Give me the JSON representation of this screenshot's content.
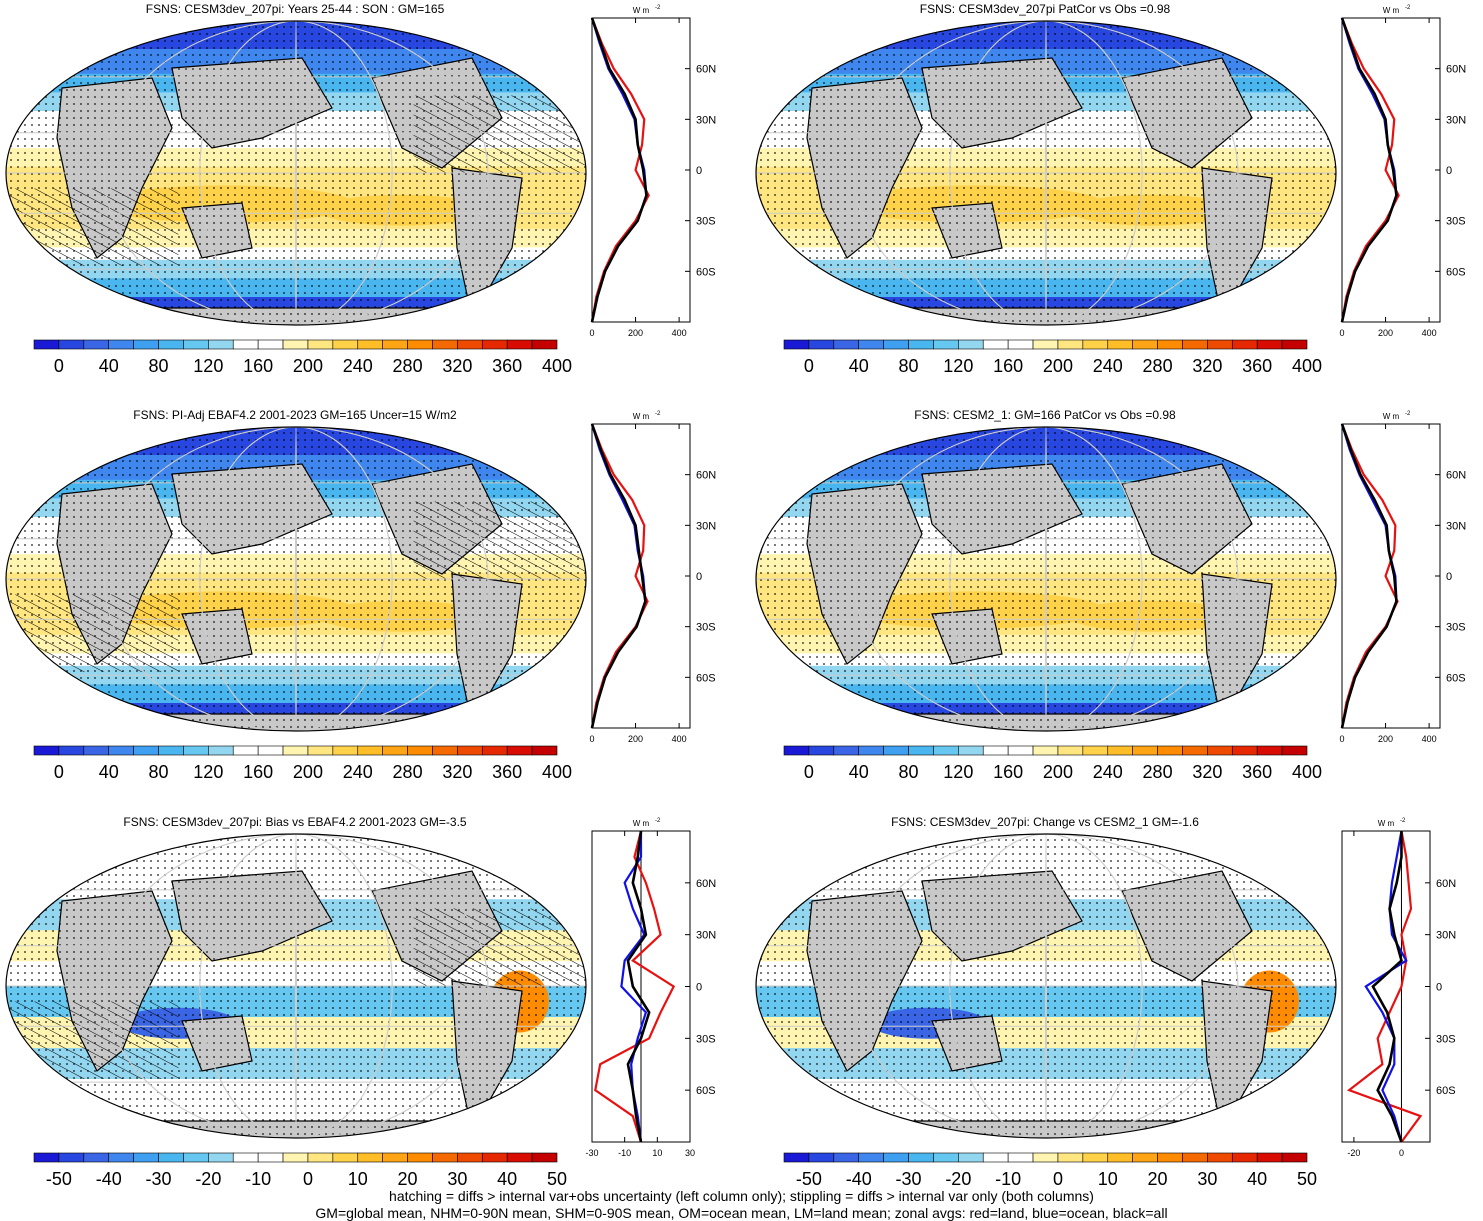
{
  "panels": [
    {
      "id": "p1",
      "title": "FSNS: CESM3dev_207pi: Years 25-44 : SON : GM=165",
      "scale": "abs",
      "hatch": true
    },
    {
      "id": "p2",
      "title": "FSNS: CESM3dev_207pi PatCor vs Obs =0.98",
      "scale": "abs",
      "hatch": false
    },
    {
      "id": "p3",
      "title": "FSNS: PI-Adj EBAF4.2 2001-2023 GM=165 Uncer=15 W/m2",
      "scale": "abs",
      "hatch": true
    },
    {
      "id": "p4",
      "title": "FSNS: CESM2_1: GM=166 PatCor vs Obs =0.98",
      "scale": "abs",
      "hatch": false
    },
    {
      "id": "p5",
      "title": "FSNS: CESM3dev_207pi: Bias vs EBAF4.2 2001-2023  GM=-3.5",
      "scale": "diff",
      "hatch": true
    },
    {
      "id": "p6",
      "title": "FSNS: CESM3dev_207pi: Change vs CESM2_1 GM=-1.6",
      "scale": "diff",
      "hatch": false
    }
  ],
  "colorbars": {
    "abs": {
      "labels": [
        "0",
        "40",
        "80",
        "120",
        "160",
        "200",
        "240",
        "280",
        "320",
        "360",
        "400"
      ],
      "colors": [
        "#1a1ad6",
        "#2846e0",
        "#3a66e6",
        "#3f86ee",
        "#3fa0f2",
        "#4ab6f0",
        "#66c8f0",
        "#93d6f0",
        "#ffffff",
        "#ffffff",
        "#fff5b0",
        "#ffe680",
        "#ffd24a",
        "#ffbe28",
        "#ffa414",
        "#ff8c00",
        "#f56a00",
        "#ee4a00",
        "#e62800",
        "#d80c00",
        "#c40000"
      ]
    },
    "diff": {
      "labels": [
        "-50",
        "-40",
        "-30",
        "-20",
        "-10",
        "0",
        "10",
        "20",
        "30",
        "40",
        "50"
      ],
      "colors": [
        "#1a1ad6",
        "#2846e0",
        "#3a66e6",
        "#3f86ee",
        "#3fa0f2",
        "#4ab6f0",
        "#66c8f0",
        "#93d6f0",
        "#ffffff",
        "#ffffff",
        "#fff5b0",
        "#ffe680",
        "#ffd24a",
        "#ffbe28",
        "#ffa414",
        "#ff8c00",
        "#f56a00",
        "#ee4a00",
        "#e62800",
        "#d80c00",
        "#c40000"
      ]
    }
  },
  "zonal_unit": "W m",
  "zonal_unit_exp": "-2",
  "lat_labels": [
    "60N",
    "30N",
    "0",
    "30S",
    "60S"
  ],
  "zonal_ticks_abs": [
    "0",
    "200",
    "400"
  ],
  "zonal_ticks_bias": [
    "-30",
    "-10",
    "10",
    "30"
  ],
  "zonal_ticks_change": [
    "-20",
    "0"
  ],
  "footer": {
    "line1": "hatching = diffs > internal var+obs uncertainty (left column only); stippling = diffs > internal var only (both columns)",
    "line2": "GM=global mean, NHM=0-90N mean, SHM=0-90S mean, OM=ocean mean, LM=land mean; zonal avgs: red=land, blue=ocean, black=all"
  },
  "chart_data": [
    {
      "type": "heatmap",
      "title": "FSNS: CESM3dev_207pi: Years 25-44 : SON : GM=165",
      "colorbar_ticks": [
        0,
        40,
        80,
        120,
        160,
        200,
        240,
        280,
        320,
        360,
        400
      ],
      "zonal_mean": {
        "lat": [
          90,
          75,
          60,
          45,
          30,
          15,
          0,
          -15,
          -30,
          -45,
          -60,
          -75,
          -90
        ],
        "all": [
          0,
          40,
          80,
          150,
          200,
          210,
          235,
          250,
          210,
          120,
          60,
          25,
          0
        ],
        "land": [
          0,
          45,
          100,
          180,
          240,
          230,
          200,
          260,
          200,
          110,
          55,
          20,
          0
        ],
        "ocean": [
          0,
          35,
          75,
          140,
          195,
          210,
          240,
          250,
          210,
          120,
          60,
          25,
          0
        ]
      }
    },
    {
      "type": "heatmap",
      "title": "FSNS: CESM3dev_207pi PatCor vs Obs =0.98",
      "colorbar_ticks": [
        0,
        40,
        80,
        120,
        160,
        200,
        240,
        280,
        320,
        360,
        400
      ],
      "zonal_mean": {
        "lat": [
          90,
          75,
          60,
          45,
          30,
          15,
          0,
          -15,
          -30,
          -45,
          -60,
          -75,
          -90
        ],
        "all": [
          0,
          40,
          80,
          150,
          200,
          210,
          235,
          250,
          210,
          120,
          60,
          25,
          0
        ],
        "land": [
          0,
          45,
          100,
          180,
          240,
          230,
          200,
          260,
          200,
          110,
          55,
          20,
          0
        ],
        "ocean": [
          0,
          35,
          75,
          140,
          195,
          210,
          240,
          250,
          210,
          120,
          60,
          25,
          0
        ]
      }
    },
    {
      "type": "heatmap",
      "title": "FSNS: PI-Adj EBAF4.2 2001-2023 GM=165 Uncer=15 W/m2",
      "colorbar_ticks": [
        0,
        40,
        80,
        120,
        160,
        200,
        240,
        280,
        320,
        360,
        400
      ],
      "zonal_mean": {
        "lat": [
          90,
          75,
          60,
          45,
          30,
          15,
          0,
          -15,
          -30,
          -45,
          -60,
          -75,
          -90
        ],
        "all": [
          0,
          40,
          85,
          150,
          200,
          215,
          230,
          245,
          205,
          120,
          60,
          25,
          0
        ],
        "land": [
          0,
          45,
          100,
          185,
          240,
          235,
          200,
          255,
          200,
          110,
          55,
          20,
          0
        ],
        "ocean": [
          0,
          35,
          80,
          140,
          195,
          210,
          235,
          245,
          205,
          120,
          60,
          25,
          0
        ]
      }
    },
    {
      "type": "heatmap",
      "title": "FSNS: CESM2_1: GM=166 PatCor vs Obs =0.98",
      "colorbar_ticks": [
        0,
        40,
        80,
        120,
        160,
        200,
        240,
        280,
        320,
        360,
        400
      ],
      "zonal_mean": {
        "lat": [
          90,
          75,
          60,
          45,
          30,
          15,
          0,
          -15,
          -30,
          -45,
          -60,
          -75,
          -90
        ],
        "all": [
          0,
          40,
          85,
          150,
          205,
          215,
          240,
          250,
          205,
          120,
          60,
          25,
          0
        ],
        "land": [
          0,
          45,
          100,
          185,
          245,
          240,
          200,
          255,
          200,
          110,
          55,
          20,
          0
        ],
        "ocean": [
          0,
          35,
          80,
          140,
          200,
          215,
          245,
          250,
          205,
          120,
          60,
          25,
          0
        ]
      }
    },
    {
      "type": "heatmap",
      "title": "FSNS: CESM3dev_207pi: Bias vs EBAF4.2 2001-2023  GM=-3.5",
      "colorbar_ticks": [
        -50,
        -40,
        -30,
        -20,
        -10,
        0,
        10,
        20,
        30,
        40,
        50
      ],
      "zonal_mean": {
        "lat": [
          90,
          75,
          60,
          45,
          30,
          15,
          0,
          -15,
          -30,
          -45,
          -60,
          -75,
          -90
        ],
        "all": [
          0,
          -2,
          -5,
          0,
          3,
          -8,
          -5,
          5,
          0,
          -8,
          -5,
          -3,
          0
        ],
        "land": [
          0,
          -4,
          3,
          8,
          12,
          -5,
          20,
          12,
          5,
          -25,
          -28,
          -5,
          0
        ],
        "ocean": [
          0,
          0,
          -10,
          -5,
          2,
          -10,
          -12,
          3,
          -2,
          -6,
          -5,
          -2,
          0
        ]
      }
    },
    {
      "type": "heatmap",
      "title": "FSNS: CESM3dev_207pi: Change vs CESM2_1 GM=-1.6",
      "colorbar_ticks": [
        -50,
        -40,
        -30,
        -20,
        -10,
        0,
        10,
        20,
        30,
        40,
        50
      ],
      "zonal_mean": {
        "lat": [
          90,
          75,
          60,
          45,
          30,
          15,
          0,
          -15,
          -30,
          -45,
          -60,
          -75,
          -90
        ],
        "all": [
          0,
          0,
          -2,
          -5,
          -3,
          0,
          -12,
          -6,
          -3,
          -5,
          -10,
          -4,
          0
        ],
        "land": [
          0,
          2,
          3,
          4,
          0,
          2,
          0,
          -5,
          -10,
          -8,
          -22,
          8,
          0
        ],
        "ocean": [
          0,
          -2,
          -4,
          -5,
          -4,
          2,
          -15,
          -8,
          -3,
          -3,
          -8,
          -3,
          0
        ]
      }
    }
  ]
}
